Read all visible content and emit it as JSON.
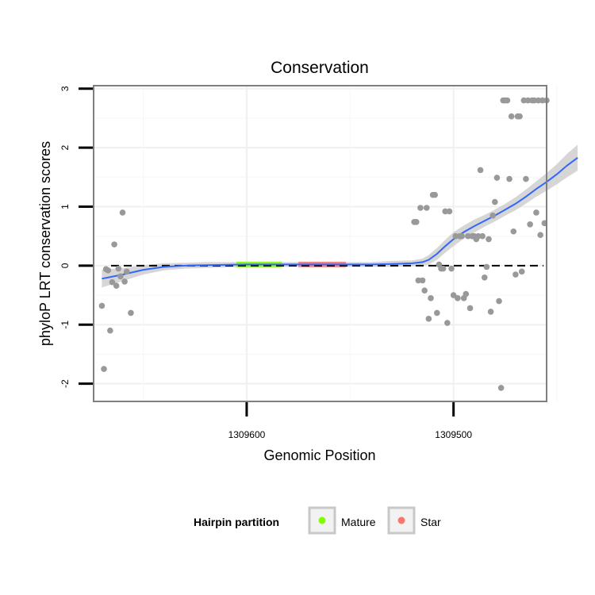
{
  "chart_data": {
    "type": "scatter",
    "title": "Conservation",
    "xlabel": "Genomic Position",
    "ylabel": "phyloP LRT conservation scores",
    "x_reversed": true,
    "xlim": [
      1309674,
      1309455
    ],
    "ylim": [
      -2.3,
      3.05
    ],
    "x_ticks": [
      {
        "value": 1309600,
        "label": "1309600"
      },
      {
        "value": 1309500,
        "label": "1309500"
      }
    ],
    "y_ticks": [
      {
        "value": 3,
        "label": "3"
      },
      {
        "value": 2,
        "label": "2"
      },
      {
        "value": 1,
        "label": "1"
      },
      {
        "value": 0,
        "label": "0"
      },
      {
        "value": -1,
        "label": "-1"
      },
      {
        "value": -2,
        "label": "-2"
      }
    ],
    "grid": true,
    "reference_line": {
      "y": 0,
      "style": "dashed"
    },
    "point_color": "#999999",
    "points": [
      {
        "x": 1309670,
        "y": -0.68
      },
      {
        "x": 1309669,
        "y": -1.75
      },
      {
        "x": 1309668,
        "y": -0.06
      },
      {
        "x": 1309667,
        "y": -0.08
      },
      {
        "x": 1309666,
        "y": -1.1
      },
      {
        "x": 1309665,
        "y": -0.28
      },
      {
        "x": 1309664,
        "y": 0.36
      },
      {
        "x": 1309663,
        "y": -0.34
      },
      {
        "x": 1309662,
        "y": -0.05
      },
      {
        "x": 1309661,
        "y": -0.18
      },
      {
        "x": 1309660,
        "y": 0.9
      },
      {
        "x": 1309659,
        "y": -0.27
      },
      {
        "x": 1309658,
        "y": -0.1
      },
      {
        "x": 1309656,
        "y": -0.8
      },
      {
        "x": 1309519,
        "y": 0.74
      },
      {
        "x": 1309518,
        "y": 0.74
      },
      {
        "x": 1309517,
        "y": -0.25
      },
      {
        "x": 1309516,
        "y": 0.98
      },
      {
        "x": 1309515,
        "y": -0.25
      },
      {
        "x": 1309514,
        "y": -0.42
      },
      {
        "x": 1309513,
        "y": 0.98
      },
      {
        "x": 1309512,
        "y": -0.9
      },
      {
        "x": 1309511,
        "y": -0.55
      },
      {
        "x": 1309510,
        "y": 1.2
      },
      {
        "x": 1309509,
        "y": 1.2
      },
      {
        "x": 1309508,
        "y": -0.8
      },
      {
        "x": 1309507,
        "y": 0.02
      },
      {
        "x": 1309506,
        "y": -0.05
      },
      {
        "x": 1309505,
        "y": -0.05
      },
      {
        "x": 1309504,
        "y": 0.92
      },
      {
        "x": 1309503,
        "y": -0.97
      },
      {
        "x": 1309502,
        "y": 0.92
      },
      {
        "x": 1309501,
        "y": -0.05
      },
      {
        "x": 1309500,
        "y": -0.5
      },
      {
        "x": 1309499,
        "y": 0.5
      },
      {
        "x": 1309498,
        "y": -0.55
      },
      {
        "x": 1309497,
        "y": 0.5
      },
      {
        "x": 1309496,
        "y": 0.5
      },
      {
        "x": 1309495,
        "y": -0.55
      },
      {
        "x": 1309494,
        "y": -0.48
      },
      {
        "x": 1309493,
        "y": 0.5
      },
      {
        "x": 1309492,
        "y": -0.72
      },
      {
        "x": 1309491,
        "y": 0.5
      },
      {
        "x": 1309490,
        "y": 0.5
      },
      {
        "x": 1309489,
        "y": 0.45
      },
      {
        "x": 1309488,
        "y": 0.5
      },
      {
        "x": 1309487,
        "y": 1.62
      },
      {
        "x": 1309486,
        "y": 0.5
      },
      {
        "x": 1309485,
        "y": -0.2
      },
      {
        "x": 1309484,
        "y": -0.02
      },
      {
        "x": 1309483,
        "y": 0.45
      },
      {
        "x": 1309482,
        "y": -0.78
      },
      {
        "x": 1309481,
        "y": 0.85
      },
      {
        "x": 1309480,
        "y": 1.08
      },
      {
        "x": 1309479,
        "y": 1.49
      },
      {
        "x": 1309478,
        "y": -0.6
      },
      {
        "x": 1309477,
        "y": -2.07
      },
      {
        "x": 1309476,
        "y": 2.8
      },
      {
        "x": 1309475,
        "y": 2.8
      },
      {
        "x": 1309474,
        "y": 2.8
      },
      {
        "x": 1309473,
        "y": 1.47
      },
      {
        "x": 1309472,
        "y": 2.53
      },
      {
        "x": 1309471,
        "y": 0.58
      },
      {
        "x": 1309470,
        "y": -0.15
      },
      {
        "x": 1309469,
        "y": 2.53
      },
      {
        "x": 1309468,
        "y": 2.53
      },
      {
        "x": 1309467,
        "y": -0.1
      },
      {
        "x": 1309466,
        "y": 2.8
      },
      {
        "x": 1309465,
        "y": 1.47
      },
      {
        "x": 1309464,
        "y": 2.8
      },
      {
        "x": 1309463,
        "y": 0.7
      },
      {
        "x": 1309462,
        "y": 2.8
      },
      {
        "x": 1309461,
        "y": 2.8
      },
      {
        "x": 1309460,
        "y": 0.9
      },
      {
        "x": 1309459,
        "y": 2.8
      },
      {
        "x": 1309458,
        "y": 0.52
      },
      {
        "x": 1309457,
        "y": 2.8
      },
      {
        "x": 1309456,
        "y": 0.72
      },
      {
        "x": 1309455,
        "y": 2.8
      }
    ],
    "smooth_line": {
      "color": "#3366ff",
      "points": [
        {
          "x": 1309670,
          "y": -0.22
        },
        {
          "x": 1309660,
          "y": -0.15
        },
        {
          "x": 1309650,
          "y": -0.07
        },
        {
          "x": 1309640,
          "y": -0.02
        },
        {
          "x": 1309630,
          "y": 0.0
        },
        {
          "x": 1309620,
          "y": 0.01
        },
        {
          "x": 1309600,
          "y": 0.02
        },
        {
          "x": 1309580,
          "y": 0.02
        },
        {
          "x": 1309560,
          "y": 0.02
        },
        {
          "x": 1309540,
          "y": 0.02
        },
        {
          "x": 1309530,
          "y": 0.03
        },
        {
          "x": 1309520,
          "y": 0.04
        },
        {
          "x": 1309515,
          "y": 0.06
        },
        {
          "x": 1309512,
          "y": 0.1
        },
        {
          "x": 1309508,
          "y": 0.2
        },
        {
          "x": 1309504,
          "y": 0.33
        },
        {
          "x": 1309500,
          "y": 0.45
        },
        {
          "x": 1309495,
          "y": 0.57
        },
        {
          "x": 1309490,
          "y": 0.67
        },
        {
          "x": 1309485,
          "y": 0.76
        },
        {
          "x": 1309480,
          "y": 0.85
        },
        {
          "x": 1309475,
          "y": 0.95
        },
        {
          "x": 1309470,
          "y": 1.05
        },
        {
          "x": 1309465,
          "y": 1.17
        },
        {
          "x": 1309460,
          "y": 1.3
        },
        {
          "x": 1309455,
          "y": 1.42
        },
        {
          "x": 1309450,
          "y": 1.55
        },
        {
          "x": 1309445,
          "y": 1.7
        },
        {
          "x": 1309440,
          "y": 1.83
        }
      ],
      "band_halfwidth": [
        0.15,
        0.11,
        0.08,
        0.06,
        0.05,
        0.05,
        0.04,
        0.04,
        0.04,
        0.04,
        0.05,
        0.05,
        0.06,
        0.08,
        0.1,
        0.11,
        0.12,
        0.11,
        0.11,
        0.1,
        0.1,
        0.1,
        0.11,
        0.12,
        0.13,
        0.15,
        0.17,
        0.2,
        0.22
      ]
    },
    "partition_segments": [
      {
        "name": "Mature",
        "x_start": 1309605,
        "x_end": 1309583,
        "y": 0.02,
        "color": "#80ff00"
      },
      {
        "name": "Star",
        "x_start": 1309575,
        "x_end": 1309552,
        "y": 0.02,
        "color": "#f8766d"
      }
    ],
    "legend": {
      "placement": "bottom",
      "title": "Hairpin partition",
      "entries": [
        {
          "label": "Mature",
          "color": "#80ff00"
        },
        {
          "label": "Star",
          "color": "#f8766d"
        }
      ]
    }
  }
}
